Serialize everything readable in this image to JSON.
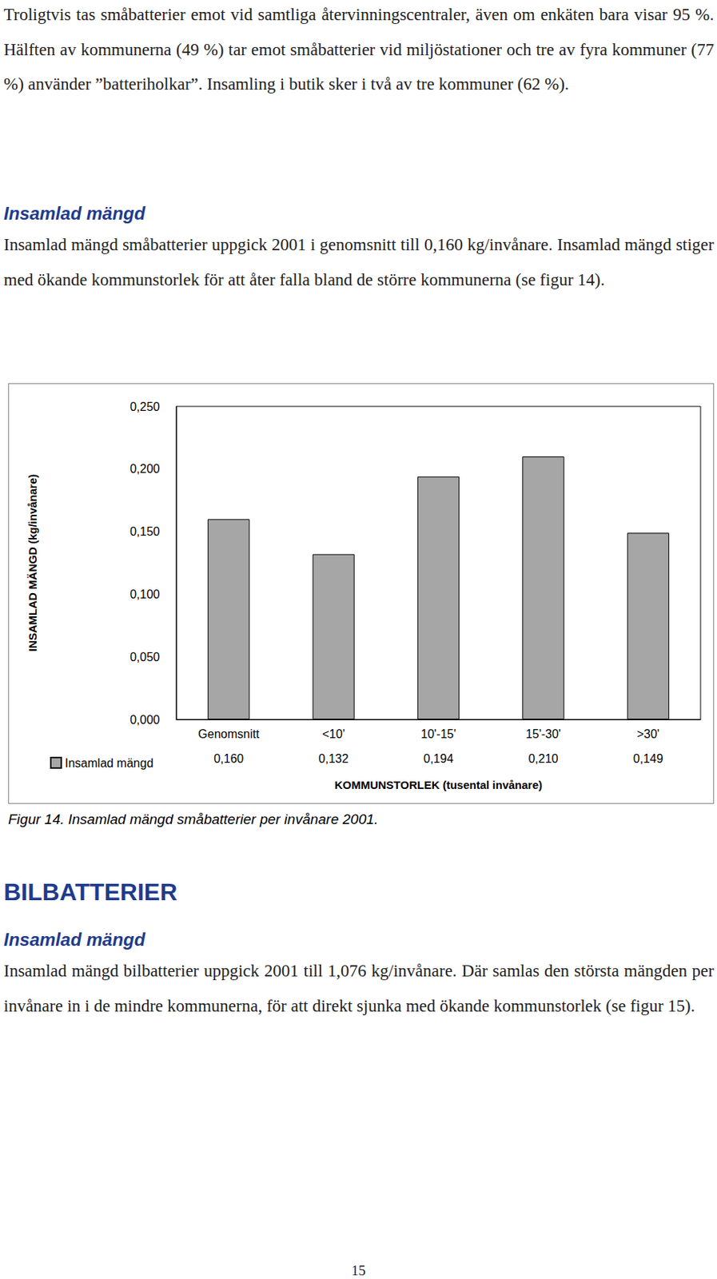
{
  "intro_paragraph": "Troligtvis tas småbatterier emot vid samtliga återvinningscentraler, även om enkäten bara visar 95 %. Hälften av kommunerna (49 %) tar emot småbatterier vid miljöstationer och tre av fyra kommuner (77 %) använder ”batteriholkar”. Insamling i butik sker i två av tre kommuner (62 %).",
  "section1": {
    "heading": "Insamlad mängd",
    "text": "Insamlad mängd småbatterier uppgick 2001 i genomsnitt till 0,160 kg/invånare. Insamlad mängd stiger med ökande kommunstorlek för att åter falla bland de större kommunerna (se figur 14)."
  },
  "chart_data": {
    "type": "bar",
    "x_label": "KOMMUNSTORLEK (tusental invånare)",
    "y_label": "INSAMLAD MÄNGD (kg/invånare)",
    "categories": [
      "Genomsnitt",
      "<10'",
      "10'-15'",
      "15'-30'",
      ">30'"
    ],
    "series": [
      {
        "name": "Insamlad mängd",
        "color": "#a6a6a6",
        "values": [
          0.16,
          0.132,
          0.194,
          0.21,
          0.149
        ],
        "value_labels": [
          "0,160",
          "0,132",
          "0,194",
          "0,210",
          "0,149"
        ]
      }
    ],
    "ylim": [
      0,
      0.25
    ],
    "yticks": [
      {
        "value": 0,
        "label": "0,000"
      },
      {
        "value": 0.05,
        "label": "0,050"
      },
      {
        "value": 0.1,
        "label": "0,100"
      },
      {
        "value": 0.15,
        "label": "0,150"
      },
      {
        "value": 0.2,
        "label": "0,200"
      },
      {
        "value": 0.25,
        "label": "0,250"
      }
    ],
    "grid": false,
    "legend": "bottom-left"
  },
  "figure": {
    "caption": "Figur 14. Insamlad mängd småbatterier per invånare 2001."
  },
  "section2": {
    "title": "BILBATTERIER",
    "heading": "Insamlad mängd",
    "text": "Insamlad mängd bilbatterier uppgick 2001 till 1,076 kg/invånare. Där samlas den största mängden per invånare in i de mindre kommunerna, för att direkt sjunka med ökande kommunstorlek (se figur 15)."
  },
  "page_number": "15"
}
